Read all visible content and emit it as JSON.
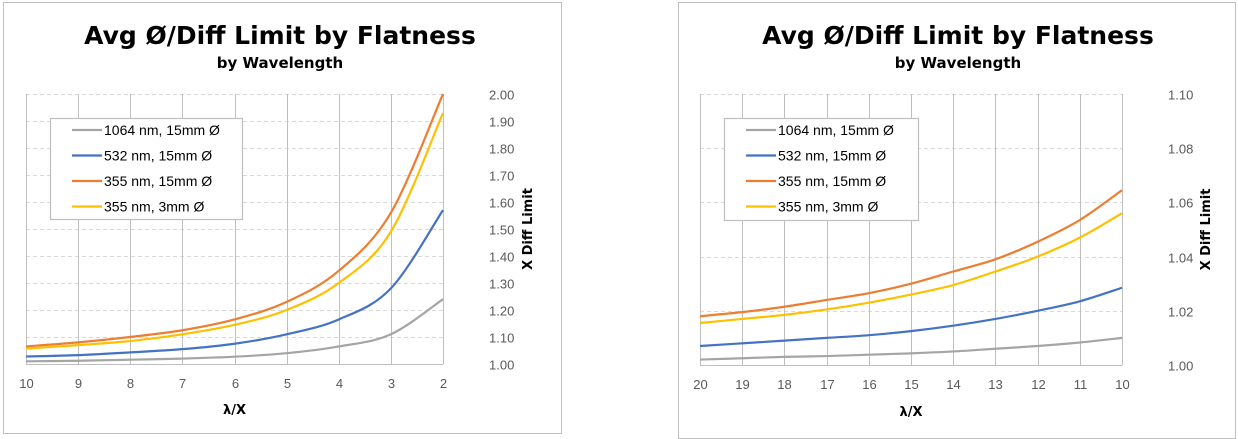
{
  "chart_data": [
    {
      "type": "line",
      "title": "Avg Ø/Diff Limit by Flatness",
      "subtitle": "by Wavelength",
      "xlabel": "λ/X",
      "ylabel": "X Diff Limit",
      "x": [
        10,
        9,
        8,
        7,
        6,
        5,
        4,
        3,
        2
      ],
      "x_reversed": true,
      "xlim": [
        10,
        2
      ],
      "ylim": [
        1.0,
        2.0
      ],
      "y_ticks": [
        "1.00",
        "1.10",
        "1.20",
        "1.30",
        "1.40",
        "1.50",
        "1.60",
        "1.70",
        "1.80",
        "1.90",
        "2.00"
      ],
      "y_axis_side": "right",
      "grid": true,
      "legend_position": "top-left",
      "series": [
        {
          "name": "1064 nm, 15mm Ø",
          "color": "#A5A5A5",
          "values": [
            1.01,
            1.012,
            1.016,
            1.02,
            1.027,
            1.04,
            1.065,
            1.11,
            1.24
          ]
        },
        {
          "name": "532 nm, 15mm Ø",
          "color": "#4472C4",
          "values": [
            1.028,
            1.033,
            1.043,
            1.055,
            1.075,
            1.11,
            1.165,
            1.28,
            1.57
          ]
        },
        {
          "name": "355 nm, 15mm Ø",
          "color": "#ED7D31",
          "values": [
            1.065,
            1.08,
            1.1,
            1.125,
            1.165,
            1.23,
            1.345,
            1.56,
            2.0
          ]
        },
        {
          "name": "355 nm, 3mm Ø",
          "color": "#FFC000",
          "values": [
            1.057,
            1.07,
            1.085,
            1.11,
            1.145,
            1.2,
            1.3,
            1.49,
            1.93
          ]
        }
      ]
    },
    {
      "type": "line",
      "title": "Avg Ø/Diff Limit by Flatness",
      "subtitle": "by Wavelength",
      "xlabel": "λ/X",
      "ylabel": "X Diff Limit",
      "x": [
        20,
        19,
        18,
        17,
        16,
        15,
        14,
        13,
        12,
        11,
        10
      ],
      "x_reversed": true,
      "xlim": [
        20,
        10
      ],
      "ylim": [
        1.0,
        1.1
      ],
      "y_ticks": [
        "1.00",
        "1.02",
        "1.04",
        "1.06",
        "1.08",
        "1.10"
      ],
      "y_axis_side": "right",
      "grid": true,
      "legend_position": "top-left",
      "series": [
        {
          "name": "1064 nm, 15mm Ø",
          "color": "#A5A5A5",
          "values": [
            1.002,
            1.0025,
            1.003,
            1.0033,
            1.0038,
            1.0043,
            1.005,
            1.006,
            1.007,
            1.0083,
            1.01
          ]
        },
        {
          "name": "532 nm, 15mm Ø",
          "color": "#4472C4",
          "values": [
            1.007,
            1.008,
            1.009,
            1.01,
            1.011,
            1.0125,
            1.0145,
            1.017,
            1.02,
            1.0235,
            1.0285
          ]
        },
        {
          "name": "355 nm, 15mm Ø",
          "color": "#ED7D31",
          "values": [
            1.018,
            1.0195,
            1.0215,
            1.024,
            1.0265,
            1.03,
            1.0345,
            1.039,
            1.0455,
            1.0535,
            1.0645
          ]
        },
        {
          "name": "355 nm, 3mm Ø",
          "color": "#FFC000",
          "values": [
            1.0155,
            1.017,
            1.0185,
            1.0205,
            1.023,
            1.026,
            1.0295,
            1.0345,
            1.04,
            1.047,
            1.056
          ]
        }
      ]
    }
  ]
}
